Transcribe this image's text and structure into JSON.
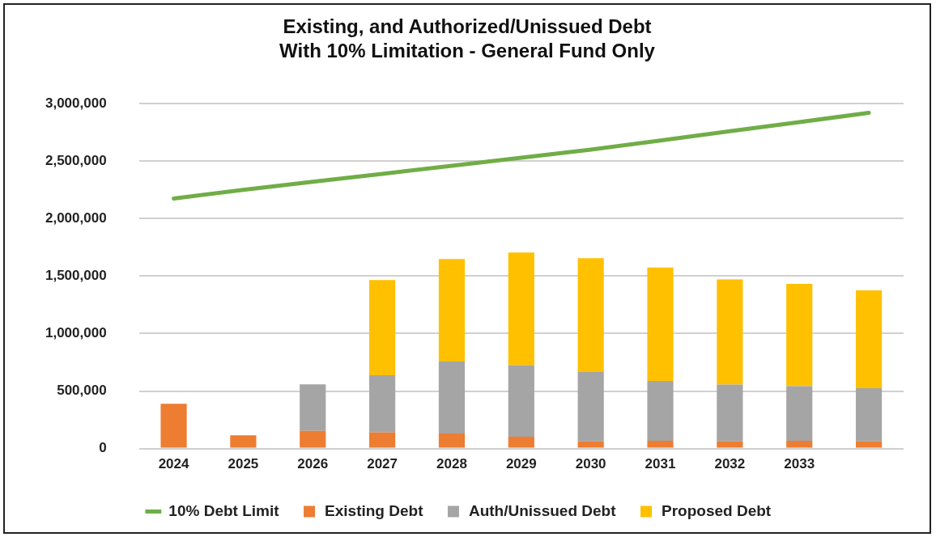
{
  "chart_data": {
    "type": "bar",
    "title": "Existing, and Authorized/Unissued Debt",
    "subtitle": "With 10% Limitation - General Fund Only",
    "categories": [
      "2024",
      "2025",
      "2026",
      "2027",
      "2028",
      "2029",
      "2030",
      "2031",
      "2032",
      "2033",
      null
    ],
    "stacked": true,
    "series": [
      {
        "name": "Existing Debt",
        "color": "#ed7d31",
        "values": [
          390000,
          115000,
          153000,
          140000,
          130000,
          103000,
          62000,
          68000,
          62000,
          68000,
          62000
        ]
      },
      {
        "name": "Auth/Unissued Debt",
        "color": "#a5a5a5",
        "values": [
          null,
          null,
          405000,
          498000,
          627000,
          622000,
          603000,
          521000,
          495000,
          475000,
          462000
        ]
      },
      {
        "name": "Proposed Debt",
        "color": "#ffc000",
        "values": [
          null,
          null,
          null,
          828000,
          891000,
          980000,
          991000,
          986000,
          914000,
          890000,
          853000
        ]
      },
      {
        "name": "10% Debt Limit",
        "type": "line",
        "color": "#70ad47",
        "values": [
          2175000,
          2250000,
          2320000,
          2390000,
          2460000,
          2530000,
          2600000,
          2680000,
          2760000,
          2840000,
          2920000
        ]
      }
    ],
    "ylim": [
      0,
      3000000
    ],
    "yticks": [
      {
        "value": 0,
        "label": "0"
      },
      {
        "value": 500000,
        "label": "500,000"
      },
      {
        "value": 1000000,
        "label": "1,000,000"
      },
      {
        "value": 1500000,
        "label": "1,500,000"
      },
      {
        "value": 2000000,
        "label": "2,000,000"
      },
      {
        "value": 2500000,
        "label": "2,500,000"
      },
      {
        "value": 3000000,
        "label": "3,000,000"
      }
    ],
    "grid": "y",
    "legend": "bottom",
    "marker": "none"
  }
}
